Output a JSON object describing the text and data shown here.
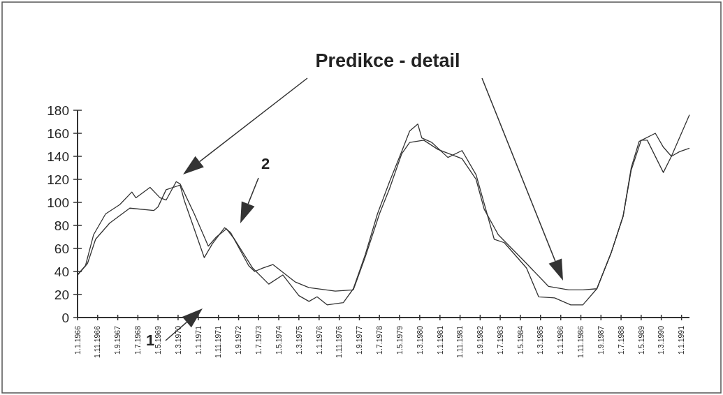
{
  "chart_data": {
    "type": "line",
    "title": "Predikce - detail",
    "annotations": [
      "1",
      "2"
    ],
    "xlim": [
      "1966-01",
      "1991-05"
    ],
    "ylim": [
      0,
      180
    ],
    "yticks": [
      0,
      20,
      40,
      60,
      80,
      100,
      120,
      140,
      160,
      180
    ],
    "xticks": [
      {
        "value": "1966-01",
        "label": "1.1.1966"
      },
      {
        "value": "1966-11",
        "label": "1.11.1966"
      },
      {
        "value": "1967-09",
        "label": "1.9.1967"
      },
      {
        "value": "1968-07",
        "label": "1.7.1968"
      },
      {
        "value": "1969-05",
        "label": "1.5.1969"
      },
      {
        "value": "1970-03",
        "label": "1.3.1970"
      },
      {
        "value": "1971-01",
        "label": "1.1.1971"
      },
      {
        "value": "1971-11",
        "label": "1.11.1971"
      },
      {
        "value": "1972-09",
        "label": "1.9.1972"
      },
      {
        "value": "1973-07",
        "label": "1.7.1973"
      },
      {
        "value": "1974-05",
        "label": "1.5.1974"
      },
      {
        "value": "1975-03",
        "label": "1.3.1975"
      },
      {
        "value": "1976-01",
        "label": "1.1.1976"
      },
      {
        "value": "1976-11",
        "label": "1.11.1976"
      },
      {
        "value": "1977-09",
        "label": "1.9.1977"
      },
      {
        "value": "1978-07",
        "label": "1.7.1978"
      },
      {
        "value": "1979-05",
        "label": "1.5.1979"
      },
      {
        "value": "1980-03",
        "label": "1.3.1980"
      },
      {
        "value": "1981-01",
        "label": "1.1.1981"
      },
      {
        "value": "1981-11",
        "label": "1.11.1981"
      },
      {
        "value": "1982-09",
        "label": "1.9.1982"
      },
      {
        "value": "1983-07",
        "label": "1.7.1983"
      },
      {
        "value": "1984-05",
        "label": "1.5.1984"
      },
      {
        "value": "1985-03",
        "label": "1.3.1985"
      },
      {
        "value": "1986-01",
        "label": "1.1.1986"
      },
      {
        "value": "1986-11",
        "label": "1.11.1986"
      },
      {
        "value": "1987-09",
        "label": "1.9.1987"
      },
      {
        "value": "1988-07",
        "label": "1.7.1988"
      },
      {
        "value": "1989-05",
        "label": "1.5.1989"
      },
      {
        "value": "1990-03",
        "label": "1.3.1990"
      },
      {
        "value": "1991-01",
        "label": "1.1.1991"
      }
    ],
    "series": [
      {
        "color": "#333333",
        "x": [
          "1966-01",
          "1966-05",
          "1966-09",
          "1967-03",
          "1967-10",
          "1968-04",
          "1968-06",
          "1969-01",
          "1969-06",
          "1969-09",
          "1970-02",
          "1970-04",
          "1970-11",
          "1971-06",
          "1971-10",
          "1972-03",
          "1972-07",
          "1973-04",
          "1973-12",
          "1974-07",
          "1975-03",
          "1975-08",
          "1975-12",
          "1976-05",
          "1977-01",
          "1977-06",
          "1977-12",
          "1978-06",
          "1978-12",
          "1979-06",
          "1979-10",
          "1980-02",
          "1980-04",
          "1980-09",
          "1981-05",
          "1981-12",
          "1982-07",
          "1983-04",
          "1983-09",
          "1984-08",
          "1985-02",
          "1985-10",
          "1986-06",
          "1986-12",
          "1987-07",
          "1988-02",
          "1988-08",
          "1988-12",
          "1989-04",
          "1989-12",
          "1990-04",
          "1990-08",
          "1990-12",
          "1991-05"
        ],
        "values": [
          37,
          45,
          72,
          90,
          98,
          109,
          104,
          113,
          104,
          102,
          118,
          116,
          90,
          62,
          70,
          77,
          68,
          43,
          29,
          37,
          19,
          14,
          18,
          11,
          13,
          25,
          55,
          90,
          118,
          144,
          162,
          168,
          156,
          152,
          139,
          145,
          124,
          68,
          65,
          43,
          18,
          17,
          11,
          11,
          25,
          56,
          88,
          130,
          153,
          160,
          148,
          140,
          144,
          147
        ]
      },
      {
        "color": "#333333",
        "x": [
          "1966-01",
          "1966-06",
          "1966-10",
          "1967-05",
          "1968-03",
          "1969-03",
          "1969-05",
          "1969-09",
          "1970-04",
          "1970-06",
          "1971-04",
          "1971-08",
          "1972-02",
          "1972-05",
          "1973-02",
          "1973-05",
          "1973-09",
          "1974-02",
          "1975-01",
          "1975-08",
          "1976-09",
          "1977-06",
          "1977-12",
          "1978-07",
          "1978-12",
          "1979-06",
          "1979-10",
          "1980-05",
          "1980-12",
          "1981-12",
          "1982-07",
          "1982-11",
          "1983-06",
          "1984-08",
          "1985-07",
          "1986-05",
          "1986-12",
          "1987-07",
          "1988-02",
          "1988-08",
          "1988-12",
          "1989-05",
          "1989-08",
          "1990-04",
          "1990-08",
          "1991-05"
        ],
        "values": [
          37,
          47,
          68,
          82,
          95,
          93,
          96,
          111,
          115,
          102,
          52,
          64,
          78,
          74,
          45,
          40,
          43,
          46,
          31,
          26,
          23,
          24,
          53,
          90,
          112,
          142,
          152,
          154,
          146,
          138,
          120,
          94,
          72,
          47,
          27,
          24,
          24,
          25,
          56,
          88,
          128,
          154,
          154,
          126,
          140,
          176
        ]
      }
    ],
    "line_style": "solid"
  }
}
